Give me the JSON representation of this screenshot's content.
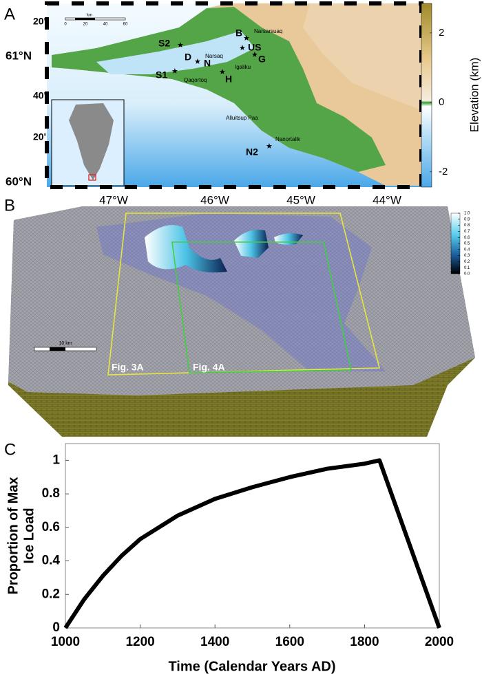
{
  "panels": {
    "a": {
      "letter": "A",
      "lat_labels": [
        "20'",
        "61°N",
        "40'",
        "20'",
        "60°N"
      ],
      "lon_labels": [
        "47°W",
        "46°W",
        "45°W",
        "44°W"
      ],
      "scale": {
        "unit": "km",
        "ticks": [
          "0",
          "20",
          "40",
          "60"
        ]
      },
      "sites": [
        "S2",
        "B",
        "Narsarsuaq",
        "US",
        "D",
        "Narsaq",
        "N",
        "G",
        "Igaliku",
        "S1",
        "H",
        "Qaqortoq",
        "Alluitsup Paa",
        "N2",
        "Nanortalik"
      ],
      "colorbar": {
        "label": "Elevation (km)",
        "lim": [
          -2.44,
          2.85
        ],
        "ticks": [
          2,
          0,
          -2
        ]
      }
    },
    "b": {
      "letter": "B",
      "scale": "10 km",
      "boxes": [
        "Fig. 3A",
        "Fig. 4A"
      ],
      "colorbar": {
        "lim": [
          0,
          1
        ],
        "ticks": [
          {
            "value": 1,
            "label": "1.0"
          },
          0.9,
          0.8,
          0.7,
          0.6,
          0.5,
          0.4,
          0.3,
          0.2,
          0.1,
          {
            "value": 0,
            "label": "0.0"
          }
        ]
      }
    },
    "c": {
      "letter": "C"
    }
  },
  "chart_data": {
    "type": "line",
    "xlabel": "Time (Calendar Years AD)",
    "ylabel": [
      "Proportion of Max",
      "Ice Load"
    ],
    "x": [
      1000,
      1050,
      1100,
      1150,
      1200,
      1300,
      1400,
      1500,
      1600,
      1700,
      1800,
      1840,
      2000
    ],
    "series": [
      {
        "name": "Ice load",
        "color": "#000000",
        "values": [
          0,
          0.17,
          0.31,
          0.43,
          0.53,
          0.67,
          0.77,
          0.84,
          0.9,
          0.95,
          0.98,
          1,
          0
        ]
      }
    ],
    "xlim": [
      1000,
      2000
    ],
    "xticks": [
      1000,
      1200,
      1400,
      1600,
      1800,
      2000
    ],
    "ylim": [
      0,
      1.1
    ],
    "yticks": [
      0,
      0.2,
      0.4,
      0.6,
      0.8,
      1
    ]
  }
}
